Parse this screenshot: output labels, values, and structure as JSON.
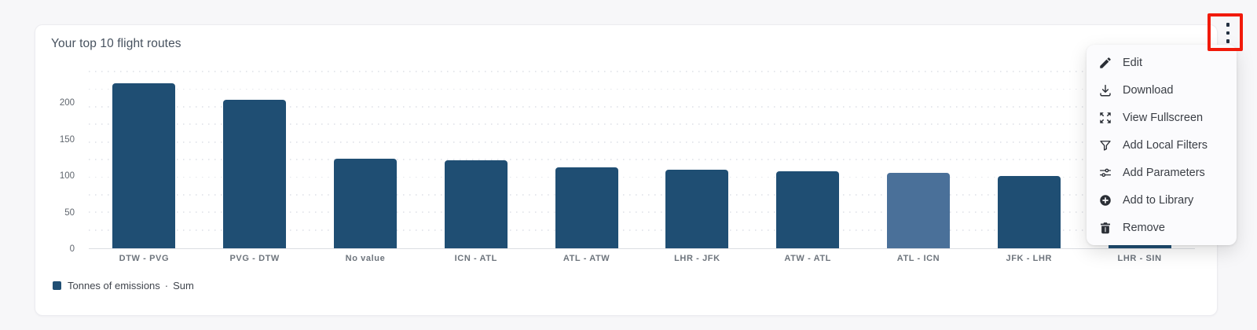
{
  "card": {
    "title": "Your top 10 flight routes"
  },
  "chart_data": {
    "type": "bar",
    "title": "Your top 10 flight routes",
    "categories": [
      "DTW - PVG",
      "PVG - DTW",
      "No value",
      "ICN - ATL",
      "ATL - ATW",
      "LHR - JFK",
      "ATW - ATL",
      "ATL - ICN",
      "JFK - LHR",
      "LHR - SIN"
    ],
    "values": [
      226,
      203,
      123,
      120,
      111,
      108,
      105,
      103,
      99,
      96
    ],
    "highlighted_category": "ATL - ICN",
    "xlabel": "",
    "ylabel": "",
    "ylim": [
      0,
      243
    ],
    "yticks": [
      0,
      50,
      100,
      150,
      200
    ],
    "grid": "dotted-horizontal",
    "bar_color": "#1F4E73",
    "highlight_color": "#4A7099",
    "legend": {
      "series_label": "Tonnes of emissions",
      "separator": "·",
      "aggregation": "Sum",
      "marker_color": "#1F4E73",
      "position": "bottom-left"
    }
  },
  "header": {
    "more_options_icon": "kebab-menu-icon"
  },
  "menu": {
    "items": [
      {
        "label": "Edit",
        "icon": "edit-pencil-icon"
      },
      {
        "label": "Download",
        "icon": "download-icon"
      },
      {
        "label": "View Fullscreen",
        "icon": "fullscreen-expand-icon"
      },
      {
        "label": "Add Local Filters",
        "icon": "filter-funnel-icon"
      },
      {
        "label": "Add Parameters",
        "icon": "sliders-icon"
      },
      {
        "label": "Add to Library",
        "icon": "add-circle-icon"
      },
      {
        "label": "Remove",
        "icon": "trash-icon"
      }
    ]
  },
  "annotation": {
    "highlight_color": "#F11A0A"
  }
}
